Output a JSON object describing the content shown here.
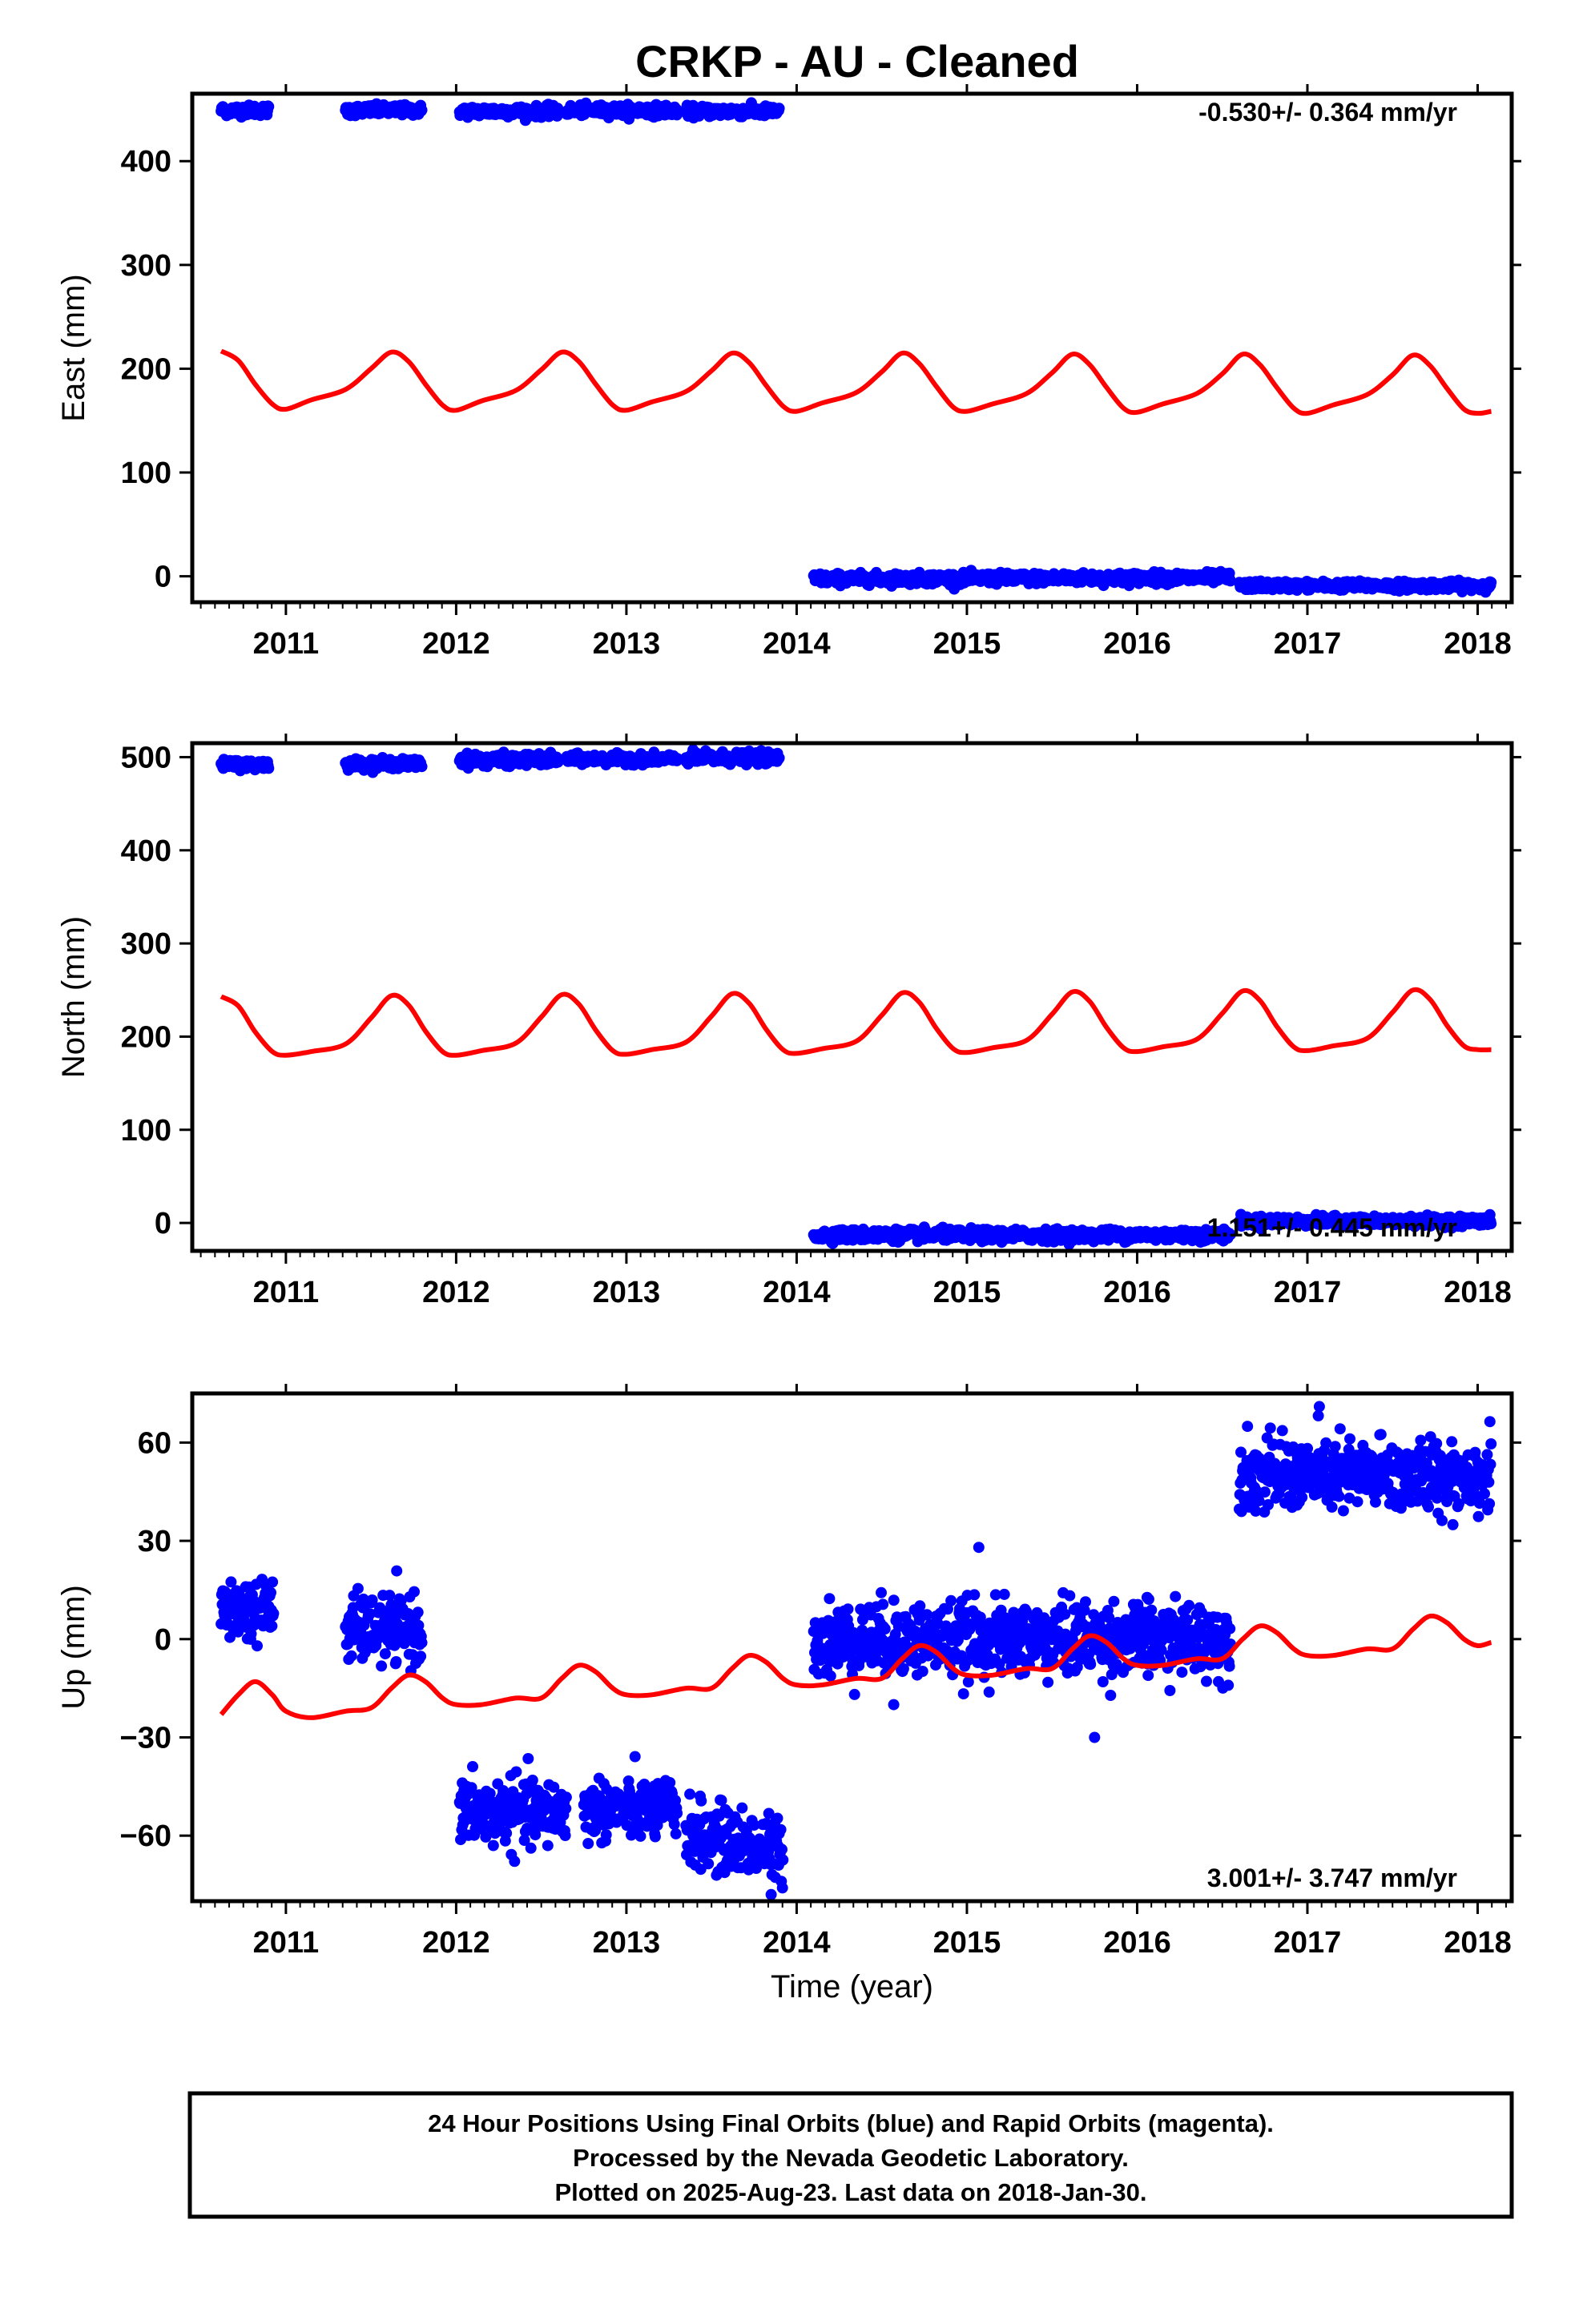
{
  "title": "CRKP  - AU - Cleaned",
  "footer": {
    "line1": "24 Hour Positions Using Final Orbits (blue) and Rapid Orbits (magenta).",
    "line2": "Processed by the Nevada Geodetic Laboratory.",
    "line3": "Plotted on 2025-Aug-23. Last data on 2018-Jan-30."
  },
  "colors": {
    "data": "#0000ff",
    "model": "#ff0000",
    "frame": "#000000"
  },
  "chart_data": [
    {
      "type": "scatter",
      "ylabel": "East (mm)",
      "xlabel": "",
      "rate_label": "-0.530+/- 0.364 mm/yr",
      "rate_position": "top-right",
      "xlim": [
        2010.45,
        2018.2
      ],
      "ylim": [
        -25,
        465
      ],
      "xticks": [
        "2011",
        "2012",
        "2013",
        "2014",
        "2015",
        "2016",
        "2017",
        "2018"
      ],
      "yticks": [
        "0",
        "100",
        "200",
        "300",
        "400"
      ],
      "grid": false,
      "series": [
        {
          "kind": "daily-positions",
          "color": "#0000ff",
          "segments": [
            {
              "start": 2010.62,
              "end": 2010.9,
              "level": 449,
              "noise": 2.5,
              "trend": 0
            },
            {
              "start": 2011.35,
              "end": 2011.8,
              "level": 449,
              "noise": 2.5,
              "trend": 0
            },
            {
              "start": 2012.02,
              "end": 2012.6,
              "level": 448,
              "noise": 2.5,
              "trend": 0
            },
            {
              "start": 2012.65,
              "end": 2013.3,
              "level": 449,
              "noise": 2.5,
              "trend": 0
            },
            {
              "start": 2013.35,
              "end": 2013.9,
              "level": 448,
              "noise": 2.5,
              "trend": 0
            },
            {
              "start": 2014.1,
              "end": 2016.55,
              "level": -2,
              "noise": 2.5,
              "trend": 0.6
            },
            {
              "start": 2016.6,
              "end": 2018.08,
              "level": -9,
              "noise": 2.0,
              "trend": 0
            }
          ]
        },
        {
          "kind": "seasonal-model",
          "color": "#ff0000",
          "x": [
            2010.62,
            2010.72,
            2010.82,
            2010.92,
            2011.0,
            2011.15,
            2011.35,
            2011.5,
            2011.62,
            2011.72,
            2011.82,
            2011.92,
            2012.0,
            2012.15,
            2012.35,
            2012.5,
            2012.62,
            2012.72,
            2012.82,
            2012.92,
            2013.0,
            2013.15,
            2013.35,
            2013.5,
            2013.62,
            2013.72,
            2013.82,
            2013.92,
            2014.0,
            2014.15,
            2014.35,
            2014.5,
            2014.62,
            2014.72,
            2014.82,
            2014.92,
            2015.0,
            2015.15,
            2015.35,
            2015.5,
            2015.62,
            2015.72,
            2015.82,
            2015.92,
            2016.0,
            2016.15,
            2016.35,
            2016.5,
            2016.62,
            2016.72,
            2016.82,
            2016.92,
            2017.0,
            2017.15,
            2017.35,
            2017.5,
            2017.62,
            2017.72,
            2017.82,
            2017.92,
            2018.0,
            2018.08
          ],
          "values": [
            217,
            208,
            185,
            166,
            161,
            170,
            180,
            200,
            216,
            207,
            185,
            165,
            160,
            169,
            179,
            199,
            216,
            207,
            185,
            165,
            160,
            168,
            178,
            198,
            215,
            206,
            184,
            164,
            159,
            167,
            177,
            197,
            215,
            205,
            183,
            163,
            159,
            166,
            176,
            196,
            214,
            204,
            182,
            162,
            158,
            166,
            176,
            195,
            214,
            204,
            182,
            162,
            157,
            165,
            175,
            194,
            213,
            203,
            181,
            161,
            157,
            159
          ]
        }
      ]
    },
    {
      "type": "scatter",
      "ylabel": "North (mm)",
      "xlabel": "",
      "rate_label": "1.151+/- 0.445 mm/yr",
      "rate_position": "bottom-right",
      "xlim": [
        2010.45,
        2018.2
      ],
      "ylim": [
        -30,
        515
      ],
      "xticks": [
        "2011",
        "2012",
        "2013",
        "2014",
        "2015",
        "2016",
        "2017",
        "2018"
      ],
      "yticks": [
        "0",
        "100",
        "200",
        "300",
        "400",
        "500"
      ],
      "grid": false,
      "series": [
        {
          "kind": "daily-positions",
          "color": "#0000ff",
          "segments": [
            {
              "start": 2010.62,
              "end": 2010.9,
              "level": 492,
              "noise": 2.5,
              "trend": 0
            },
            {
              "start": 2011.35,
              "end": 2011.8,
              "level": 493,
              "noise": 2.5,
              "trend": 0
            },
            {
              "start": 2012.02,
              "end": 2012.6,
              "level": 497,
              "noise": 3.0,
              "trend": 0
            },
            {
              "start": 2012.65,
              "end": 2013.3,
              "level": 498,
              "noise": 2.5,
              "trend": 0
            },
            {
              "start": 2013.35,
              "end": 2013.9,
              "level": 499,
              "noise": 3.0,
              "trend": 0
            },
            {
              "start": 2014.1,
              "end": 2016.55,
              "level": -13,
              "noise": 3.0,
              "trend": 0
            },
            {
              "start": 2016.6,
              "end": 2018.08,
              "level": 2,
              "noise": 2.5,
              "trend": 0
            }
          ]
        },
        {
          "kind": "seasonal-model",
          "color": "#ff0000",
          "x": [
            2010.62,
            2010.72,
            2010.82,
            2010.92,
            2011.0,
            2011.15,
            2011.35,
            2011.5,
            2011.62,
            2011.72,
            2011.82,
            2011.92,
            2012.0,
            2012.15,
            2012.35,
            2012.5,
            2012.62,
            2012.72,
            2012.82,
            2012.92,
            2013.0,
            2013.15,
            2013.35,
            2013.5,
            2013.62,
            2013.72,
            2013.82,
            2013.92,
            2014.0,
            2014.15,
            2014.35,
            2014.5,
            2014.62,
            2014.72,
            2014.82,
            2014.92,
            2015.0,
            2015.15,
            2015.35,
            2015.5,
            2015.62,
            2015.72,
            2015.82,
            2015.92,
            2016.0,
            2016.15,
            2016.35,
            2016.5,
            2016.62,
            2016.72,
            2016.82,
            2016.92,
            2017.0,
            2017.15,
            2017.35,
            2017.5,
            2017.62,
            2017.72,
            2017.82,
            2017.92,
            2018.0,
            2018.08
          ],
          "values": [
            243,
            233,
            205,
            184,
            180,
            184,
            192,
            220,
            244,
            234,
            206,
            184,
            180,
            185,
            193,
            221,
            245,
            235,
            207,
            185,
            181,
            186,
            194,
            222,
            246,
            236,
            208,
            186,
            182,
            187,
            195,
            223,
            247,
            237,
            209,
            187,
            183,
            188,
            196,
            224,
            248,
            238,
            210,
            188,
            184,
            189,
            197,
            225,
            249,
            239,
            211,
            189,
            185,
            190,
            198,
            226,
            250,
            240,
            212,
            190,
            186,
            186
          ]
        }
      ]
    },
    {
      "type": "scatter",
      "ylabel": "Up (mm)",
      "xlabel": "Time (year)",
      "rate_label": "3.001+/- 3.747 mm/yr",
      "rate_position": "bottom-right",
      "xlim": [
        2010.45,
        2018.2
      ],
      "ylim": [
        -80,
        75
      ],
      "xticks": [
        "2011",
        "2012",
        "2013",
        "2014",
        "2015",
        "2016",
        "2017",
        "2018"
      ],
      "yticks": [
        "60",
        "30",
        "0",
        "−30",
        "−60"
      ],
      "grid": false,
      "series": [
        {
          "kind": "daily-positions",
          "color": "#0000ff",
          "segments": [
            {
              "start": 2010.62,
              "end": 2010.93,
              "level": 9,
              "noise": 4.5,
              "trend": 0
            },
            {
              "start": 2011.35,
              "end": 2011.8,
              "level": 3,
              "noise": 5.0,
              "trend": 0
            },
            {
              "start": 2012.02,
              "end": 2012.65,
              "level": -53,
              "noise": 5.0,
              "trend": 0
            },
            {
              "start": 2012.75,
              "end": 2013.3,
              "level": -52,
              "noise": 4.5,
              "trend": 0
            },
            {
              "start": 2013.35,
              "end": 2013.92,
              "level": -62,
              "noise": 5.0,
              "trend": -3
            },
            {
              "start": 2014.1,
              "end": 2016.55,
              "level": 0,
              "noise": 5.5,
              "trend": 0
            },
            {
              "start": 2016.6,
              "end": 2018.08,
              "level": 50,
              "noise": 5.5,
              "trend": 0
            }
          ],
          "outliers": [
            {
              "x": 2015.07,
              "y": 28
            },
            {
              "x": 2015.75,
              "y": -30
            },
            {
              "x": 2017.07,
              "y": 71
            },
            {
              "x": 2013.85,
              "y": -78
            },
            {
              "x": 2014.57,
              "y": -20
            }
          ]
        },
        {
          "kind": "seasonal-model",
          "color": "#ff0000",
          "x": [
            2010.62,
            2010.72,
            2010.82,
            2010.92,
            2011.0,
            2011.15,
            2011.35,
            2011.5,
            2011.62,
            2011.72,
            2011.82,
            2011.92,
            2012.0,
            2012.15,
            2012.35,
            2012.5,
            2012.62,
            2012.72,
            2012.82,
            2012.92,
            2013.0,
            2013.15,
            2013.35,
            2013.5,
            2013.62,
            2013.72,
            2013.82,
            2013.92,
            2014.0,
            2014.15,
            2014.35,
            2014.5,
            2014.62,
            2014.72,
            2014.82,
            2014.92,
            2015.0,
            2015.15,
            2015.35,
            2015.5,
            2015.62,
            2015.72,
            2015.82,
            2015.92,
            2016.0,
            2016.15,
            2016.35,
            2016.5,
            2016.62,
            2016.72,
            2016.82,
            2016.92,
            2017.0,
            2017.15,
            2017.35,
            2017.5,
            2017.62,
            2017.72,
            2017.82,
            2017.92,
            2018.0,
            2018.08
          ],
          "values": [
            -23,
            -17,
            -13,
            -17,
            -22,
            -24,
            -22,
            -21,
            -15,
            -11,
            -13,
            -18,
            -20,
            -20,
            -18,
            -18,
            -12,
            -8,
            -10,
            -15,
            -17,
            -17,
            -15,
            -15,
            -9,
            -5,
            -7,
            -12,
            -14,
            -14,
            -12,
            -12,
            -6,
            -2,
            -4,
            -9,
            -11,
            -11,
            -9,
            -9,
            -3,
            1,
            -1,
            -6,
            -8,
            -8,
            -6,
            -6,
            0,
            4,
            2,
            -3,
            -5,
            -5,
            -3,
            -3,
            3,
            7,
            5,
            0,
            -2,
            -1
          ]
        }
      ]
    }
  ]
}
